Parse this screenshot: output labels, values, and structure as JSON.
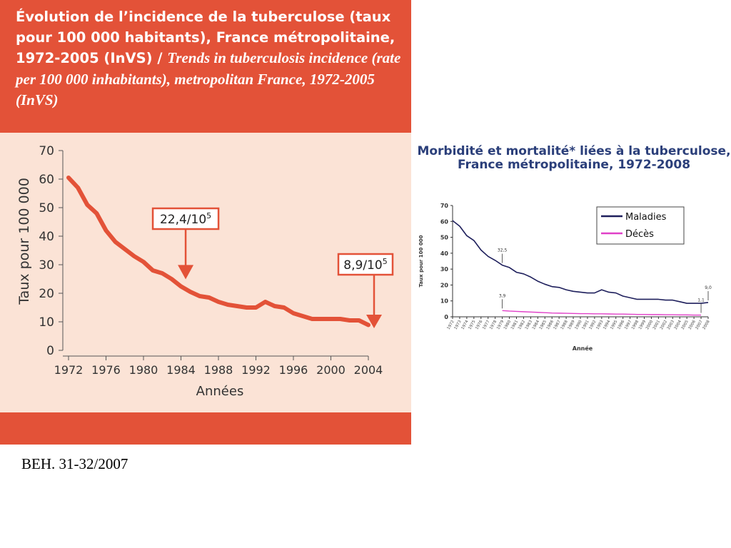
{
  "source": "BEH. 31-32/2007",
  "chart_data": [
    {
      "type": "line",
      "title": {
        "fr": "Évolution de l’incidence de la tuberculose (taux pour 100 000 habitants), France métropolitaine, 1972-2005 (InVS) /",
        "en": "Trends in tuberculosis incidence (rate per 100 000 inhabitants), metropolitan France, 1972-2005 (InVS)"
      },
      "xlabel": "Années",
      "ylabel": "Taux pour 100 000",
      "xlim": [
        1972,
        2004
      ],
      "ylim": [
        0,
        70
      ],
      "xticks": [
        "1972",
        "1976",
        "1980",
        "1984",
        "1988",
        "1992",
        "1996",
        "2000",
        "2004"
      ],
      "yticks": [
        "0",
        "10",
        "20",
        "30",
        "40",
        "50",
        "60",
        "70"
      ],
      "x": [
        1972,
        1973,
        1974,
        1975,
        1976,
        1977,
        1978,
        1979,
        1980,
        1981,
        1982,
        1983,
        1984,
        1985,
        1986,
        1987,
        1988,
        1989,
        1990,
        1991,
        1992,
        1993,
        1994,
        1995,
        1996,
        1997,
        1998,
        1999,
        2000,
        2001,
        2002,
        2003,
        2004
      ],
      "values": [
        60.5,
        57,
        51,
        48,
        42,
        38,
        35.5,
        33,
        31,
        28,
        27,
        25,
        22.4,
        20.5,
        19,
        18.5,
        17,
        16,
        15.5,
        15,
        15,
        17,
        15.5,
        15,
        13,
        12,
        11,
        11,
        11,
        11,
        10.5,
        10.5,
        8.9
      ],
      "annotations": [
        {
          "label": "22,4/10",
          "sup": "5",
          "x": 1984.5,
          "y": 22.4
        },
        {
          "label": "8,9/10",
          "sup": "5",
          "x": 2004.6,
          "y": 8.9
        }
      ],
      "colors": {
        "line": "#e35238",
        "background": "#fbe3d6",
        "frame": "#e35238"
      }
    },
    {
      "type": "line",
      "title": [
        "Morbidité et mortalité* liées à la tuberculose,",
        "France métropolitaine, 1972-2008"
      ],
      "xlabel": "Année",
      "ylabel": "Taux pour 100 000",
      "xlim": [
        1972,
        2008
      ],
      "ylim": [
        0,
        70
      ],
      "yticks": [
        "0",
        "10",
        "20",
        "30",
        "40",
        "50",
        "60",
        "70"
      ],
      "x": [
        1972,
        1973,
        1974,
        1975,
        1976,
        1977,
        1978,
        1979,
        1980,
        1981,
        1982,
        1983,
        1984,
        1985,
        1986,
        1987,
        1988,
        1989,
        1990,
        1991,
        1992,
        1993,
        1994,
        1995,
        1996,
        1997,
        1998,
        1999,
        2000,
        2001,
        2002,
        2003,
        2004,
        2005,
        2006,
        2007,
        2008
      ],
      "series": [
        {
          "name": "Maladies",
          "color": "#1e1f5c",
          "values": [
            60.5,
            57,
            51,
            48,
            42,
            38,
            35.5,
            32.5,
            31,
            28,
            27,
            25,
            22.4,
            20.5,
            19,
            18.5,
            17,
            16,
            15.5,
            15,
            15,
            17,
            15.5,
            15,
            13,
            12,
            11,
            11,
            11,
            11,
            10.5,
            10.5,
            9.5,
            8.5,
            8.5,
            8.5,
            9.0
          ]
        },
        {
          "name": "Décès",
          "color": "#e040c8",
          "values": [
            null,
            null,
            null,
            null,
            null,
            null,
            null,
            3.9,
            3.6,
            3.4,
            3.2,
            3.0,
            2.8,
            2.6,
            2.4,
            2.3,
            2.2,
            2.1,
            2.0,
            2.0,
            1.9,
            1.9,
            1.8,
            1.7,
            1.7,
            1.6,
            1.5,
            1.5,
            1.4,
            1.4,
            1.3,
            1.3,
            1.2,
            1.2,
            1.1,
            1.1,
            null
          ]
        }
      ],
      "annotations": [
        {
          "label": "32,5",
          "x": 1979,
          "y": 32.5
        },
        {
          "label": "3,9",
          "x": 1979,
          "y": 3.9
        },
        {
          "label": "9,0",
          "x": 2008,
          "y": 9.0
        },
        {
          "label": "1,1",
          "x": 2007,
          "y": 1.1
        }
      ],
      "legend": "top-right"
    }
  ]
}
